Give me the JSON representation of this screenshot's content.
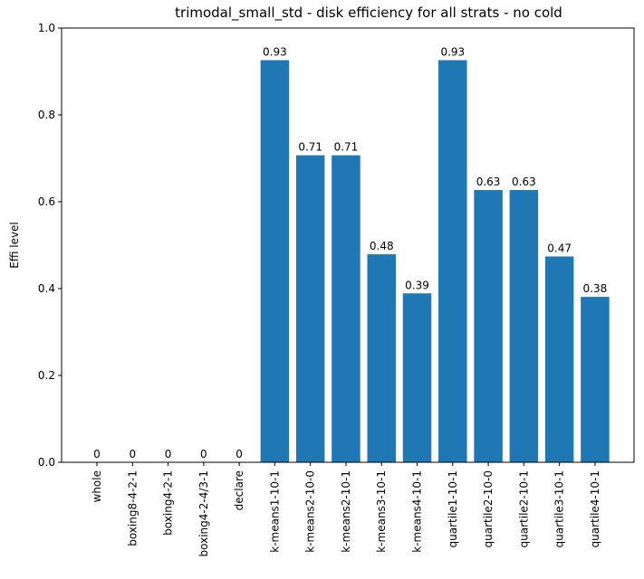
{
  "chart_data": {
    "type": "bar",
    "title": "trimodal_small_std - disk efficiency for all strats - no cold",
    "xlabel": "",
    "ylabel": "Effi level",
    "ylim": [
      0,
      1.0
    ],
    "yticks": [
      "0.0",
      "0.2",
      "0.4",
      "0.6",
      "0.8",
      "1.0"
    ],
    "categories": [
      "whole",
      "boxing8-4-2-1",
      "boxing4-2-1",
      "boxing4-2-4/3-1",
      "declare",
      "k-means1-10-1",
      "k-means2-10-0",
      "k-means2-10-1",
      "k-means3-10-1",
      "k-means4-10-1",
      "quartile1-10-1",
      "quartile2-10-0",
      "quartile2-10-1",
      "quartile3-10-1",
      "quartile4-10-1"
    ],
    "values": [
      0,
      0,
      0,
      0,
      0,
      0.926,
      0.707,
      0.707,
      0.479,
      0.389,
      0.926,
      0.627,
      0.627,
      0.474,
      0.381
    ],
    "data_labels": [
      "0",
      "0",
      "0",
      "0",
      "0",
      "0.93",
      "0.71",
      "0.71",
      "0.48",
      "0.39",
      "0.93",
      "0.63",
      "0.63",
      "0.47",
      "0.38"
    ],
    "bar_color": "#1f77b4",
    "grid": false,
    "legend": "none"
  }
}
